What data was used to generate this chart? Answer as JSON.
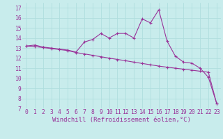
{
  "xlabel": "Windchill (Refroidissement éolien,°C)",
  "background_color": "#c8ecec",
  "line_color": "#993399",
  "grid_color": "#b0dede",
  "xlim": [
    -0.5,
    23.5
  ],
  "ylim": [
    7,
    17.5
  ],
  "xticks": [
    0,
    1,
    2,
    3,
    4,
    5,
    6,
    7,
    8,
    9,
    10,
    11,
    12,
    13,
    14,
    15,
    16,
    17,
    18,
    19,
    20,
    21,
    22,
    23
  ],
  "yticks": [
    7,
    8,
    9,
    10,
    11,
    12,
    13,
    14,
    15,
    16,
    17
  ],
  "series1_x": [
    0,
    1,
    2,
    3,
    4,
    5,
    6,
    7,
    8,
    9,
    10,
    11,
    12,
    13,
    14,
    15,
    16,
    17,
    18,
    19,
    20,
    21,
    22,
    23
  ],
  "series1_y": [
    13.2,
    13.3,
    13.1,
    13.0,
    12.9,
    12.8,
    12.6,
    13.6,
    13.85,
    14.45,
    14.0,
    14.45,
    14.45,
    14.0,
    15.9,
    15.5,
    16.8,
    13.7,
    12.2,
    11.6,
    11.5,
    11.0,
    10.1,
    7.5
  ],
  "series2_x": [
    0,
    1,
    2,
    3,
    4,
    5,
    6,
    7,
    8,
    9,
    10,
    11,
    12,
    13,
    14,
    15,
    16,
    17,
    18,
    19,
    20,
    21,
    22,
    23
  ],
  "series2_y": [
    13.2,
    13.15,
    13.05,
    12.95,
    12.85,
    12.75,
    12.55,
    12.42,
    12.28,
    12.14,
    12.0,
    11.87,
    11.74,
    11.6,
    11.47,
    11.34,
    11.21,
    11.1,
    11.0,
    10.9,
    10.8,
    10.7,
    10.6,
    7.5
  ],
  "xlabel_fontsize": 6.5,
  "tick_fontsize": 5.8,
  "figwidth": 3.2,
  "figheight": 2.0,
  "dpi": 100
}
